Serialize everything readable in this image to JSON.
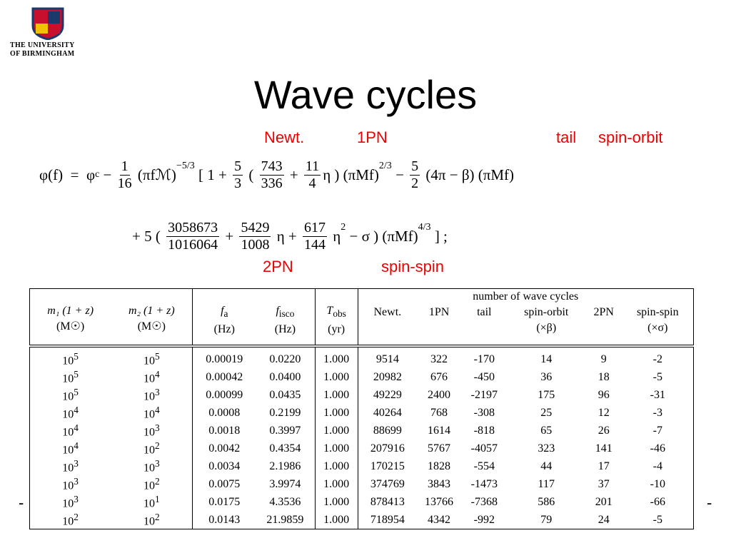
{
  "logo": {
    "line1": "THE UNIVERSITY",
    "line2": "OF BIRMINGHAM"
  },
  "title": "Wave cycles",
  "term_labels": [
    "Newt.",
    "1PN",
    "tail",
    "spin-orbit",
    "2PN",
    "spin-spin"
  ],
  "equation": {
    "line1": [
      {
        "t": "φ(f)  =  φ"
      },
      {
        "sub": "c"
      },
      {
        "t": " − "
      },
      {
        "num": "1",
        "den": "16"
      },
      {
        "t": " (πfℳ)"
      },
      {
        "sup": "−5/3"
      },
      {
        "t": " [ 1 + "
      },
      {
        "num": "5",
        "den": "3"
      },
      {
        "t": " ( "
      },
      {
        "num": "743",
        "den": "336"
      },
      {
        "t": " + "
      },
      {
        "num": "11",
        "den": "4"
      },
      {
        "t": "η ) (πMf)"
      },
      {
        "sup": "2/3"
      },
      {
        "t": " − "
      },
      {
        "num": "5",
        "den": "2"
      },
      {
        "t": " (4π − β) (πMf)"
      }
    ],
    "line2": [
      {
        "t": "+ 5 ( "
      },
      {
        "num": "3058673",
        "den": "1016064"
      },
      {
        "t": " + "
      },
      {
        "num": "5429",
        "den": "1008"
      },
      {
        "t": " η + "
      },
      {
        "num": "617",
        "den": "144"
      },
      {
        "t": " η"
      },
      {
        "sup": "2"
      },
      {
        "t": " − σ ) (πMf)"
      },
      {
        "sup": "4/3"
      },
      {
        "t": " ] ;"
      }
    ]
  },
  "table": {
    "left_headers": [
      {
        "main": "m₁ (1 + z)",
        "unit": "(M☉)"
      },
      {
        "main": "m₂ (1 + z)",
        "unit": "(M☉)"
      },
      {
        "main": "f",
        "sub": "a",
        "unit": "(Hz)"
      },
      {
        "main": "f",
        "sub": "isco",
        "unit": "(Hz)"
      },
      {
        "main": "T",
        "sub": "obs",
        "unit": "(yr)"
      }
    ],
    "group_header": "number of wave cycles",
    "cycle_headers": [
      [
        "Newt."
      ],
      [
        "1PN"
      ],
      [
        "tail"
      ],
      [
        "spin-orbit",
        "(×β)"
      ],
      [
        "2PN"
      ],
      [
        "spin-spin",
        "(×σ)"
      ]
    ],
    "rows": [
      [
        [
          "10",
          "5"
        ],
        [
          "10",
          "5"
        ],
        "0.00019",
        "0.0220",
        "1.000",
        "9514",
        "322",
        "-170",
        "14",
        "9",
        "-2"
      ],
      [
        [
          "10",
          "5"
        ],
        [
          "10",
          "4"
        ],
        "0.00042",
        "0.0400",
        "1.000",
        "20982",
        "676",
        "-450",
        "36",
        "18",
        "-5"
      ],
      [
        [
          "10",
          "5"
        ],
        [
          "10",
          "3"
        ],
        "0.00099",
        "0.0435",
        "1.000",
        "49229",
        "2400",
        "-2197",
        "175",
        "96",
        "-31"
      ],
      [
        [
          "10",
          "4"
        ],
        [
          "10",
          "4"
        ],
        "0.0008",
        "0.2199",
        "1.000",
        "40264",
        "768",
        "-308",
        "25",
        "12",
        "-3"
      ],
      [
        [
          "10",
          "4"
        ],
        [
          "10",
          "3"
        ],
        "0.0018",
        "0.3997",
        "1.000",
        "88699",
        "1614",
        "-818",
        "65",
        "26",
        "-7"
      ],
      [
        [
          "10",
          "4"
        ],
        [
          "10",
          "2"
        ],
        "0.0042",
        "0.4354",
        "1.000",
        "207916",
        "5767",
        "-4057",
        "323",
        "141",
        "-46"
      ],
      [
        [
          "10",
          "3"
        ],
        [
          "10",
          "3"
        ],
        "0.0034",
        "2.1986",
        "1.000",
        "170215",
        "1828",
        "-554",
        "44",
        "17",
        "-4"
      ],
      [
        [
          "10",
          "3"
        ],
        [
          "10",
          "2"
        ],
        "0.0075",
        "3.9974",
        "1.000",
        "374769",
        "3843",
        "-1473",
        "117",
        "37",
        "-10"
      ],
      [
        [
          "10",
          "3"
        ],
        [
          "10",
          "1"
        ],
        "0.0175",
        "4.3536",
        "1.000",
        "878413",
        "13766",
        "-7368",
        "586",
        "201",
        "-66"
      ],
      [
        [
          "10",
          "2"
        ],
        [
          "10",
          "2"
        ],
        "0.0143",
        "21.9859",
        "1.000",
        "718954",
        "4342",
        "-992",
        "79",
        "24",
        "-5"
      ]
    ]
  },
  "side_marks": [
    "-",
    "-"
  ]
}
